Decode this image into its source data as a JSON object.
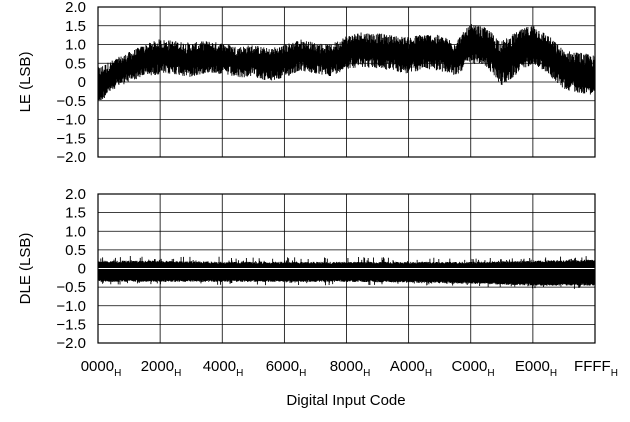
{
  "chart_data": [
    {
      "type": "line",
      "title": "",
      "ylabel": "LE (LSB)",
      "xlabel": "",
      "xlim": [
        0,
        65535
      ],
      "ylim": [
        -2.0,
        2.0
      ],
      "grid": true,
      "y_ticks": [
        "2.0",
        "1.5",
        "1.0",
        "0.5",
        "0",
        "−0.5",
        "−1.0",
        "−1.5",
        "−2.0"
      ],
      "x_ticks_hex": [
        0,
        8192,
        16384,
        24576,
        32768,
        40960,
        49152,
        57344,
        65535
      ],
      "series": [
        {
          "style": "dense noise band",
          "x": [
            0,
            2048,
            4096,
            6144,
            8192,
            10240,
            12288,
            14336,
            16384,
            18432,
            20480,
            22528,
            24576,
            26624,
            28672,
            30720,
            32768,
            34816,
            36864,
            38912,
            40960,
            43008,
            45056,
            47104,
            49152,
            51200,
            53248,
            55296,
            57344,
            59392,
            61440,
            63488,
            65535
          ],
          "upper": [
            0.4,
            0.6,
            0.8,
            1.0,
            1.15,
            1.1,
            1.05,
            1.1,
            1.05,
            0.95,
            1.0,
            0.9,
            1.0,
            1.15,
            1.05,
            1.0,
            1.25,
            1.35,
            1.3,
            1.25,
            1.2,
            1.3,
            1.25,
            1.1,
            1.55,
            1.45,
            1.1,
            1.35,
            1.55,
            1.25,
            0.85,
            0.8,
            0.7
          ],
          "lower": [
            -0.6,
            -0.2,
            0.0,
            0.15,
            0.2,
            0.2,
            0.1,
            0.25,
            0.2,
            0.1,
            0.15,
            0.0,
            0.1,
            0.3,
            0.2,
            0.15,
            0.35,
            0.4,
            0.35,
            0.3,
            0.2,
            0.35,
            0.3,
            0.15,
            0.5,
            0.4,
            -0.1,
            0.2,
            0.5,
            0.2,
            -0.2,
            -0.3,
            -0.35
          ]
        }
      ]
    },
    {
      "type": "line",
      "title": "",
      "ylabel": "DLE (LSB)",
      "xlabel": "Digital Input Code",
      "xlim": [
        0,
        65535
      ],
      "ylim": [
        -2.0,
        2.0
      ],
      "grid": true,
      "y_ticks": [
        "2.0",
        "1.5",
        "1.0",
        "0.5",
        "0",
        "−0.5",
        "−1.0",
        "−1.5",
        "−2.0"
      ],
      "x_tick_labels": [
        "0000",
        "2000",
        "4000",
        "6000",
        "8000",
        "A000",
        "C000",
        "E000",
        "FFFF"
      ],
      "x_tick_suffix": "H",
      "x_ticks_hex": [
        0,
        8192,
        16384,
        24576,
        32768,
        40960,
        49152,
        57344,
        65535
      ],
      "series": [
        {
          "style": "dense noise band",
          "x": [
            0,
            8192,
            16384,
            24576,
            32768,
            40960,
            49152,
            57344,
            65535
          ],
          "upper": [
            0.35,
            0.35,
            0.32,
            0.3,
            0.32,
            0.3,
            0.28,
            0.3,
            0.35
          ],
          "lower": [
            -0.45,
            -0.45,
            -0.45,
            -0.45,
            -0.45,
            -0.45,
            -0.5,
            -0.55,
            -0.55
          ],
          "core_upper": [
            0.15,
            0.15,
            0.12,
            0.12,
            0.12,
            0.12,
            0.12,
            0.15,
            0.18
          ],
          "core_lower": [
            -0.3,
            -0.3,
            -0.3,
            -0.3,
            -0.3,
            -0.32,
            -0.35,
            -0.4,
            -0.4
          ]
        }
      ]
    }
  ]
}
